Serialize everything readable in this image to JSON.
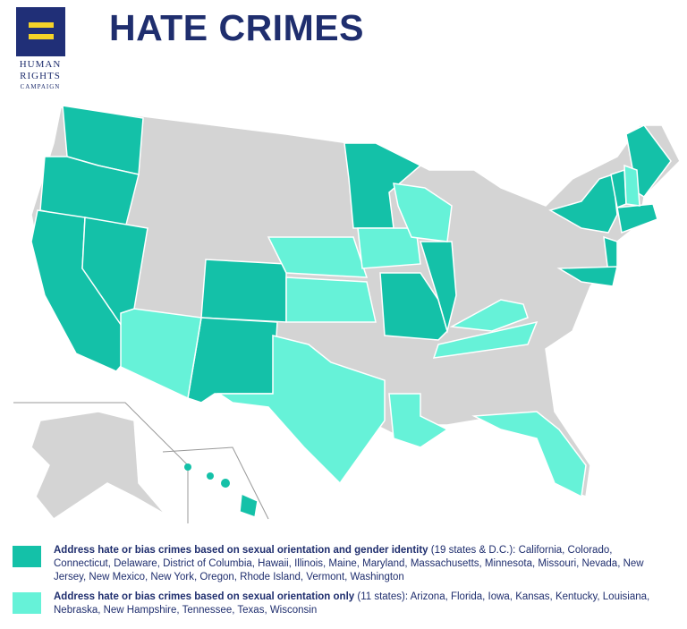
{
  "header": {
    "title": "HATE CRIMES",
    "logo": [
      "HUMAN",
      "RIGHTS",
      "CAMPAIGN"
    ]
  },
  "legend": [
    {
      "label": "Address hate or bias crimes based on sexual orientation and gender identity",
      "count": "(19 states & D.C.):",
      "states": "California, Colorado, Connecticut, Delaware, District of Columbia, Hawaii, Illinois, Maine, Maryland, Massachusetts, Minnesota, Missouri, Nevada, New Jersey, New Mexico, New York, Oregon, Rhode Island, Vermont, Washington"
    },
    {
      "label": "Address hate or bias crimes based on sexual orientation only",
      "count": "(11 states):",
      "states": "Arizona, Florida, Iowa, Kansas, Kentucky, Louisiana, Nebraska, New Hampshire, Tennessee, Texas, Wisconsin"
    }
  ]
}
